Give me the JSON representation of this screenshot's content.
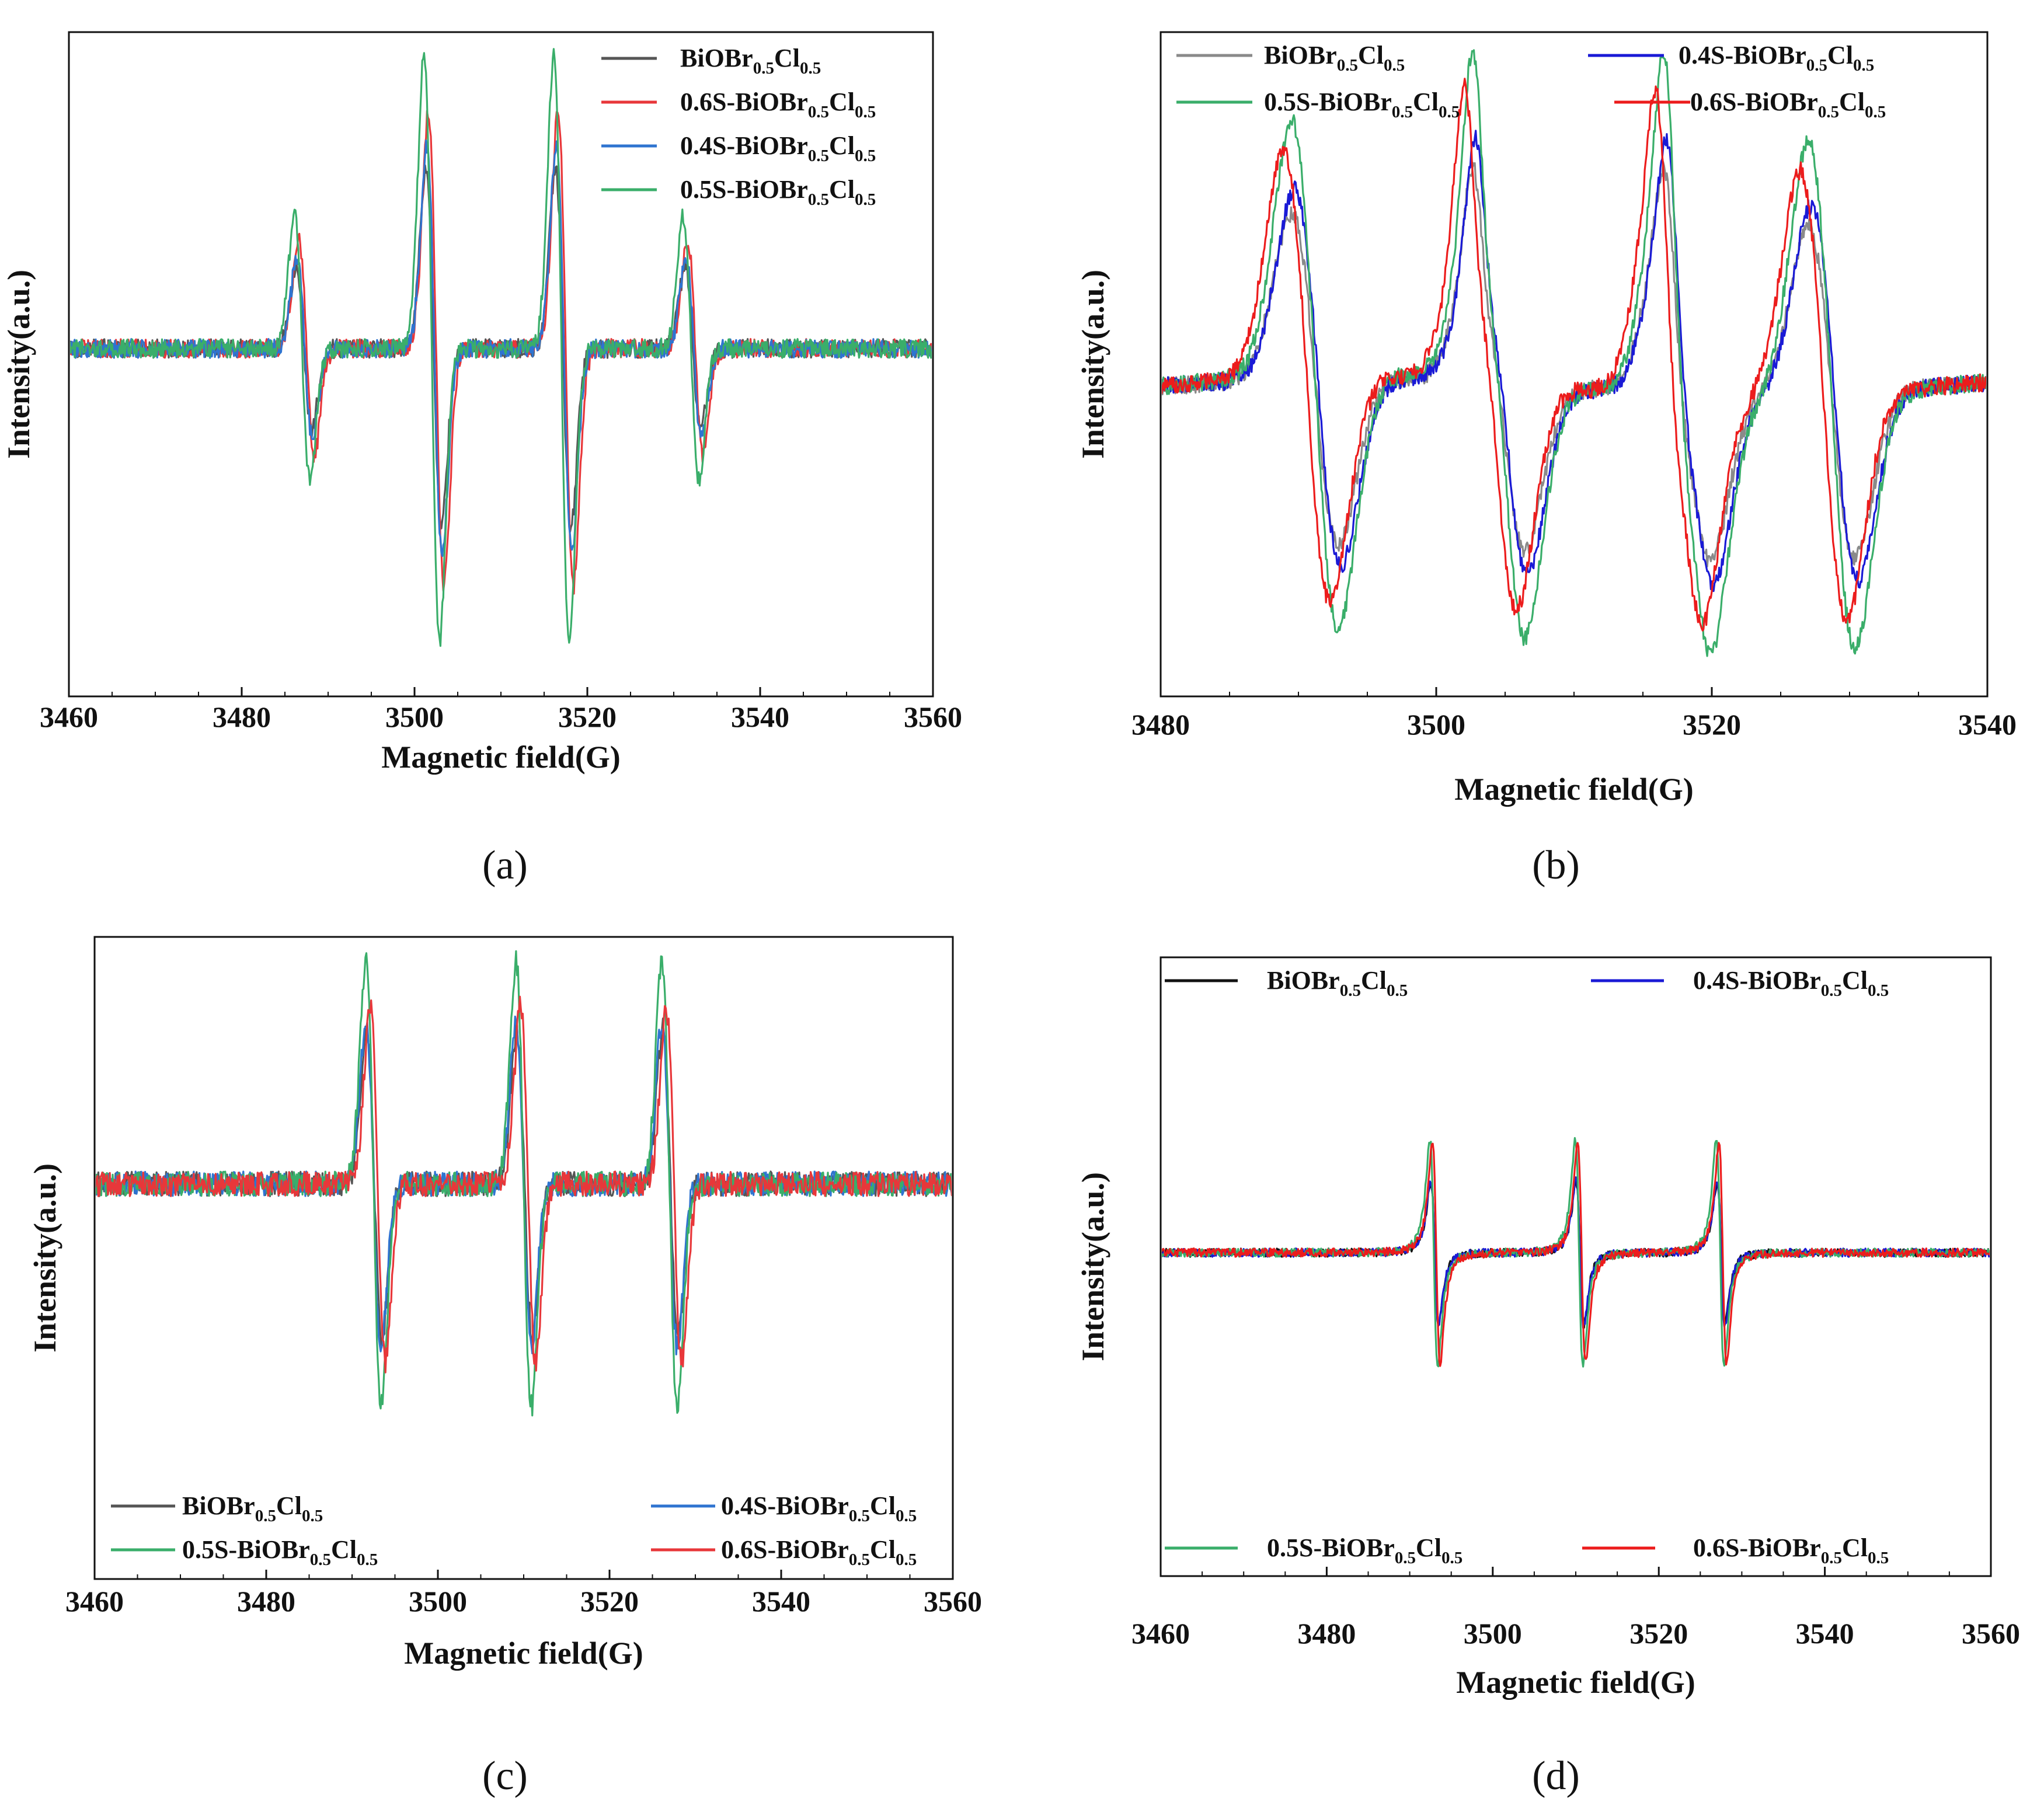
{
  "chart_data": [
    {
      "panel": "a",
      "caption": "(a)",
      "type": "line",
      "xlabel": "Magnetic field(G)",
      "ylabel": "Intensity(a.u.)",
      "xlim": [
        3460,
        3560
      ],
      "ylim": [
        -1.1,
        1.0
      ],
      "xticks": [
        "3460",
        "3480",
        "3500",
        "3520",
        "3540",
        "3560"
      ],
      "legend_position": "top-right",
      "peak_positions": [
        3487,
        3502,
        3517,
        3532
      ],
      "relative_peak_amplitudes": [
        0.45,
        1.0,
        1.0,
        0.45
      ],
      "noise_level": 0.03,
      "series": [
        {
          "name": "BiOBr0.5Cl0.5",
          "base": "BiOBr",
          "prefix": "",
          "sub1": "0.5",
          "mid": "Cl",
          "sub2": "0.5",
          "color": "#555555",
          "amplitude": 0.57,
          "shift": 0.2
        },
        {
          "name": "0.6S-BiOBr0.5Cl0.5",
          "base": "BiOBr",
          "prefix": "0.6S-",
          "sub1": "0.5",
          "mid": "Cl",
          "sub2": "0.5",
          "color": "#e8373a",
          "amplitude": 0.75,
          "shift": 0.5
        },
        {
          "name": "0.4S-BiOBr0.5Cl0.5",
          "base": "BiOBr",
          "prefix": "0.4S-",
          "sub1": "0.5",
          "mid": "Cl",
          "sub2": "0.5",
          "color": "#2f74d0",
          "amplitude": 0.64,
          "shift": 0.3
        },
        {
          "name": "0.5S-BiOBr0.5Cl0.5",
          "base": "BiOBr",
          "prefix": "0.5S-",
          "sub1": "0.5",
          "mid": "Cl",
          "sub2": "0.5",
          "color": "#3aae6a",
          "amplitude": 0.93,
          "shift": 0.0
        }
      ]
    },
    {
      "panel": "b",
      "caption": "(b)",
      "type": "line",
      "xlabel": "Magnetic field(G)",
      "ylabel": "Intensity(a.u.)",
      "xlim": [
        3480,
        3540
      ],
      "ylim": [
        -1.4,
        1.6
      ],
      "xticks": [
        "3480",
        "3500",
        "3520",
        "3540"
      ],
      "legend_position": "top",
      "noise_level": 0.04,
      "series": [
        {
          "name": "BiOBr0.5Cl0.5",
          "base": "BiOBr",
          "prefix": "",
          "sub1": "0.5",
          "mid": "Cl",
          "sub2": "0.5",
          "color": "#8a8a8a",
          "amplitude": 0.75,
          "shift": 0.2
        },
        {
          "name": "0.4S-BiOBr0.5Cl0.5",
          "base": "BiOBr",
          "prefix": "0.4S-",
          "sub1": "0.5",
          "mid": "Cl",
          "sub2": "0.5",
          "color": "#1a1ad6",
          "amplitude": 0.85,
          "shift": 0.4
        },
        {
          "name": "0.5S-BiOBr0.5Cl0.5",
          "base": "BiOBr",
          "prefix": "0.5S-",
          "sub1": "0.5",
          "mid": "Cl",
          "sub2": "0.5",
          "color": "#3aae6a",
          "amplitude": 1.15,
          "shift": 0.2
        },
        {
          "name": "0.6S-BiOBr0.5Cl0.5",
          "base": "BiOBr",
          "prefix": "0.6S-",
          "sub1": "0.5",
          "mid": "Cl",
          "sub2": "0.5",
          "color": "#ec1c1c",
          "amplitude": 1.02,
          "shift": -0.4
        }
      ]
    },
    {
      "panel": "c",
      "caption": "(c)",
      "type": "line",
      "xlabel": "Magnetic field(G)",
      "ylabel": "Intensity(a.u.)",
      "xlim": [
        3460,
        3560
      ],
      "ylim": [
        -1.6,
        1.0
      ],
      "xticks": [
        "3460",
        "3480",
        "3500",
        "3520",
        "3540",
        "3560"
      ],
      "legend_position": "bottom",
      "peak_positions": [
        3492.5,
        3510,
        3527
      ],
      "noise_level": 0.05,
      "series": [
        {
          "name": "BiOBr0.5Cl0.5",
          "base": "BiOBr",
          "prefix": "",
          "sub1": "0.5",
          "mid": "Cl",
          "sub2": "0.5",
          "color": "#555555",
          "amplitude": 0.62,
          "shift": 0.1
        },
        {
          "name": "0.4S-BiOBr0.5Cl0.5",
          "base": "BiOBr",
          "prefix": "0.4S-",
          "sub1": "0.5",
          "mid": "Cl",
          "sub2": "0.5",
          "color": "#2f74d0",
          "amplitude": 0.66,
          "shift": 0.0
        },
        {
          "name": "0.5S-BiOBr0.5Cl0.5",
          "base": "BiOBr",
          "prefix": "0.5S-",
          "sub1": "0.5",
          "mid": "Cl",
          "sub2": "0.5",
          "color": "#3aae6a",
          "amplitude": 0.9,
          "shift": 0.0
        },
        {
          "name": "0.6S-BiOBr0.5Cl0.5",
          "base": "BiOBr",
          "prefix": "0.6S-",
          "sub1": "0.5",
          "mid": "Cl",
          "sub2": "0.5",
          "color": "#e8373a",
          "amplitude": 0.72,
          "shift": 0.5
        }
      ]
    },
    {
      "panel": "d",
      "caption": "(d)",
      "type": "line",
      "xlabel": "Magnetic field(G)",
      "ylabel": "Intensity(a.u.)",
      "xlim": [
        3460,
        3560
      ],
      "ylim": [
        -1.15,
        1.05
      ],
      "xticks": [
        "3460",
        "3480",
        "3500",
        "3520",
        "3540",
        "3560"
      ],
      "legend_position": "top and bottom",
      "peak_positions": [
        3493,
        3510.5,
        3527.5
      ],
      "noise_level": 0.015,
      "series": [
        {
          "name": "BiOBr0.5Cl0.5",
          "base": "BiOBr",
          "prefix": "",
          "sub1": "0.5",
          "mid": "Cl",
          "sub2": "0.5",
          "color": "#111111",
          "amplitude": 0.63,
          "shift": 0.0
        },
        {
          "name": "0.4S-BiOBr0.5Cl0.5",
          "base": "BiOBr",
          "prefix": "0.4S-",
          "sub1": "0.5",
          "mid": "Cl",
          "sub2": "0.5",
          "color": "#1a1ad6",
          "amplitude": 0.64,
          "shift": 0.0
        },
        {
          "name": "0.5S-BiOBr0.5Cl0.5",
          "base": "BiOBr",
          "prefix": "0.5S-",
          "sub1": "0.5",
          "mid": "Cl",
          "sub2": "0.5",
          "color": "#3aae6a",
          "amplitude": 1.0,
          "shift": -0.1
        },
        {
          "name": "0.6S-BiOBr0.5Cl0.5",
          "base": "BiOBr",
          "prefix": "0.6S-",
          "sub1": "0.5",
          "mid": "Cl",
          "sub2": "0.5",
          "color": "#ec1c1c",
          "amplitude": 0.97,
          "shift": 0.2
        }
      ]
    }
  ]
}
